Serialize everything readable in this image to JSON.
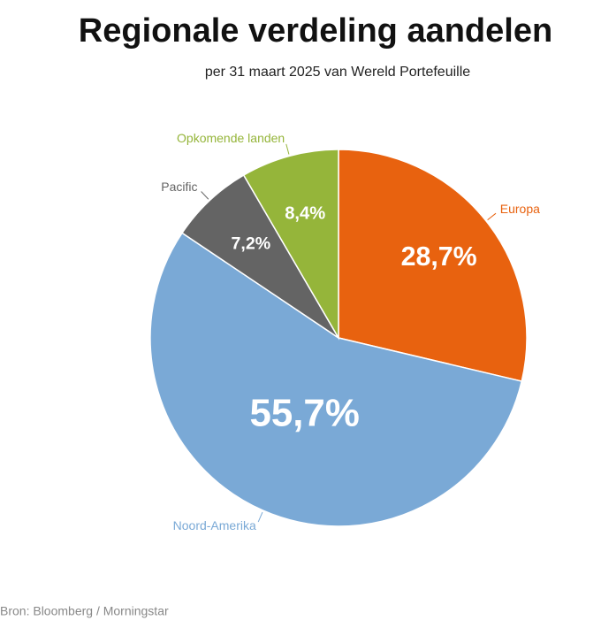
{
  "chart_data": {
    "type": "pie",
    "title": "Regionale verdeling aandelen",
    "subtitle": "per 31 maart 2025 van Wereld Portefeuille",
    "categories": [
      "Europa",
      "Noord-Amerika",
      "Pacific",
      "Opkomende landen"
    ],
    "values": [
      28.7,
      55.7,
      7.2,
      8.4
    ],
    "value_labels": [
      "28,7%",
      "55,7%",
      "7,2%",
      "8,4%"
    ],
    "colors": [
      "#e8620f",
      "#7aa9d6",
      "#646464",
      "#95b53a"
    ],
    "source": "Bron: Bloomberg / Morningstar"
  }
}
